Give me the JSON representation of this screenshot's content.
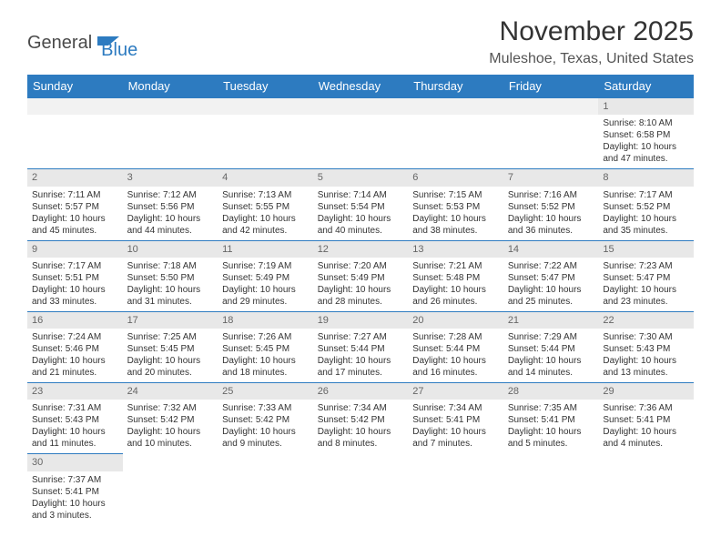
{
  "brand": {
    "part1": "General",
    "part2": "Blue"
  },
  "colors": {
    "accent": "#2d7bc0",
    "header_bg": "#2d7bc0",
    "header_text": "#ffffff",
    "daynum_bg": "#e8e8e8",
    "daynum_text": "#666666",
    "text": "#333333",
    "border": "#2d7bc0"
  },
  "title": "November 2025",
  "location": "Muleshoe, Texas, United States",
  "weekdays": [
    "Sunday",
    "Monday",
    "Tuesday",
    "Wednesday",
    "Thursday",
    "Friday",
    "Saturday"
  ],
  "weeks": [
    [
      {
        "n": "",
        "empty": true
      },
      {
        "n": "",
        "empty": true
      },
      {
        "n": "",
        "empty": true
      },
      {
        "n": "",
        "empty": true
      },
      {
        "n": "",
        "empty": true
      },
      {
        "n": "",
        "empty": true
      },
      {
        "n": "1",
        "sunrise": "8:10 AM",
        "sunset": "6:58 PM",
        "daylight": "10 hours and 47 minutes."
      }
    ],
    [
      {
        "n": "2",
        "sunrise": "7:11 AM",
        "sunset": "5:57 PM",
        "daylight": "10 hours and 45 minutes."
      },
      {
        "n": "3",
        "sunrise": "7:12 AM",
        "sunset": "5:56 PM",
        "daylight": "10 hours and 44 minutes."
      },
      {
        "n": "4",
        "sunrise": "7:13 AM",
        "sunset": "5:55 PM",
        "daylight": "10 hours and 42 minutes."
      },
      {
        "n": "5",
        "sunrise": "7:14 AM",
        "sunset": "5:54 PM",
        "daylight": "10 hours and 40 minutes."
      },
      {
        "n": "6",
        "sunrise": "7:15 AM",
        "sunset": "5:53 PM",
        "daylight": "10 hours and 38 minutes."
      },
      {
        "n": "7",
        "sunrise": "7:16 AM",
        "sunset": "5:52 PM",
        "daylight": "10 hours and 36 minutes."
      },
      {
        "n": "8",
        "sunrise": "7:17 AM",
        "sunset": "5:52 PM",
        "daylight": "10 hours and 35 minutes."
      }
    ],
    [
      {
        "n": "9",
        "sunrise": "7:17 AM",
        "sunset": "5:51 PM",
        "daylight": "10 hours and 33 minutes."
      },
      {
        "n": "10",
        "sunrise": "7:18 AM",
        "sunset": "5:50 PM",
        "daylight": "10 hours and 31 minutes."
      },
      {
        "n": "11",
        "sunrise": "7:19 AM",
        "sunset": "5:49 PM",
        "daylight": "10 hours and 29 minutes."
      },
      {
        "n": "12",
        "sunrise": "7:20 AM",
        "sunset": "5:49 PM",
        "daylight": "10 hours and 28 minutes."
      },
      {
        "n": "13",
        "sunrise": "7:21 AM",
        "sunset": "5:48 PM",
        "daylight": "10 hours and 26 minutes."
      },
      {
        "n": "14",
        "sunrise": "7:22 AM",
        "sunset": "5:47 PM",
        "daylight": "10 hours and 25 minutes."
      },
      {
        "n": "15",
        "sunrise": "7:23 AM",
        "sunset": "5:47 PM",
        "daylight": "10 hours and 23 minutes."
      }
    ],
    [
      {
        "n": "16",
        "sunrise": "7:24 AM",
        "sunset": "5:46 PM",
        "daylight": "10 hours and 21 minutes."
      },
      {
        "n": "17",
        "sunrise": "7:25 AM",
        "sunset": "5:45 PM",
        "daylight": "10 hours and 20 minutes."
      },
      {
        "n": "18",
        "sunrise": "7:26 AM",
        "sunset": "5:45 PM",
        "daylight": "10 hours and 18 minutes."
      },
      {
        "n": "19",
        "sunrise": "7:27 AM",
        "sunset": "5:44 PM",
        "daylight": "10 hours and 17 minutes."
      },
      {
        "n": "20",
        "sunrise": "7:28 AM",
        "sunset": "5:44 PM",
        "daylight": "10 hours and 16 minutes."
      },
      {
        "n": "21",
        "sunrise": "7:29 AM",
        "sunset": "5:44 PM",
        "daylight": "10 hours and 14 minutes."
      },
      {
        "n": "22",
        "sunrise": "7:30 AM",
        "sunset": "5:43 PM",
        "daylight": "10 hours and 13 minutes."
      }
    ],
    [
      {
        "n": "23",
        "sunrise": "7:31 AM",
        "sunset": "5:43 PM",
        "daylight": "10 hours and 11 minutes."
      },
      {
        "n": "24",
        "sunrise": "7:32 AM",
        "sunset": "5:42 PM",
        "daylight": "10 hours and 10 minutes."
      },
      {
        "n": "25",
        "sunrise": "7:33 AM",
        "sunset": "5:42 PM",
        "daylight": "10 hours and 9 minutes."
      },
      {
        "n": "26",
        "sunrise": "7:34 AM",
        "sunset": "5:42 PM",
        "daylight": "10 hours and 8 minutes."
      },
      {
        "n": "27",
        "sunrise": "7:34 AM",
        "sunset": "5:41 PM",
        "daylight": "10 hours and 7 minutes."
      },
      {
        "n": "28",
        "sunrise": "7:35 AM",
        "sunset": "5:41 PM",
        "daylight": "10 hours and 5 minutes."
      },
      {
        "n": "29",
        "sunrise": "7:36 AM",
        "sunset": "5:41 PM",
        "daylight": "10 hours and 4 minutes."
      }
    ],
    [
      {
        "n": "30",
        "sunrise": "7:37 AM",
        "sunset": "5:41 PM",
        "daylight": "10 hours and 3 minutes."
      },
      {
        "n": "",
        "empty": true,
        "noborder": true
      },
      {
        "n": "",
        "empty": true,
        "noborder": true
      },
      {
        "n": "",
        "empty": true,
        "noborder": true
      },
      {
        "n": "",
        "empty": true,
        "noborder": true
      },
      {
        "n": "",
        "empty": true,
        "noborder": true
      },
      {
        "n": "",
        "empty": true,
        "noborder": true
      }
    ]
  ],
  "labels": {
    "sunrise": "Sunrise: ",
    "sunset": "Sunset: ",
    "daylight": "Daylight: "
  }
}
